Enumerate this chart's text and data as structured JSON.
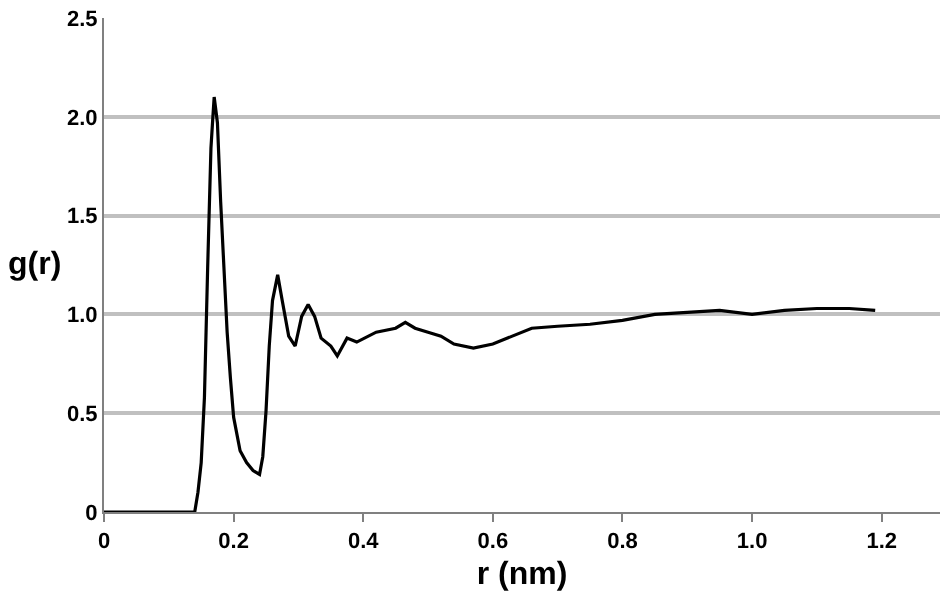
{
  "chart_data": {
    "type": "line",
    "xlabel": "r (nm)",
    "ylabel": "g(r)",
    "x": [
      0,
      0.14,
      0.145,
      0.15,
      0.155,
      0.16,
      0.165,
      0.168,
      0.17,
      0.175,
      0.18,
      0.185,
      0.19,
      0.195,
      0.2,
      0.21,
      0.22,
      0.23,
      0.24,
      0.245,
      0.25,
      0.255,
      0.26,
      0.268,
      0.275,
      0.285,
      0.295,
      0.305,
      0.315,
      0.325,
      0.335,
      0.35,
      0.36,
      0.375,
      0.39,
      0.42,
      0.45,
      0.465,
      0.48,
      0.5,
      0.52,
      0.54,
      0.57,
      0.6,
      0.63,
      0.66,
      0.7,
      0.75,
      0.8,
      0.85,
      0.9,
      0.95,
      1.0,
      1.05,
      1.1,
      1.15,
      1.19
    ],
    "series": [
      {
        "color": "#000000",
        "values": [
          0,
          0,
          0.1,
          0.25,
          0.58,
          1.24,
          1.84,
          2.0,
          2.1,
          1.97,
          1.57,
          1.24,
          0.91,
          0.68,
          0.48,
          0.31,
          0.25,
          0.21,
          0.19,
          0.28,
          0.51,
          0.84,
          1.07,
          1.2,
          1.07,
          0.89,
          0.84,
          0.99,
          1.05,
          0.99,
          0.88,
          0.84,
          0.79,
          0.88,
          0.86,
          0.91,
          0.93,
          0.96,
          0.93,
          0.91,
          0.89,
          0.85,
          0.83,
          0.85,
          0.89,
          0.93,
          0.94,
          0.95,
          0.97,
          1.0,
          1.01,
          1.02,
          1.0,
          1.02,
          1.03,
          1.03,
          1.02
        ]
      }
    ],
    "xlim": [
      0,
      1.29
    ],
    "xticks": [
      0,
      0.2,
      0.4,
      0.6,
      0.8,
      {
        "value": 1.0,
        "label": "1.0"
      },
      1.2
    ],
    "ylim": [
      0,
      2.5
    ],
    "yticks": [
      0,
      0.5,
      {
        "value": 1.0,
        "label": "1.0"
      },
      1.5,
      {
        "value": 2.0,
        "label": "2.0"
      },
      2.5
    ],
    "grid": "y",
    "marker": "none",
    "line_style": "solid"
  }
}
